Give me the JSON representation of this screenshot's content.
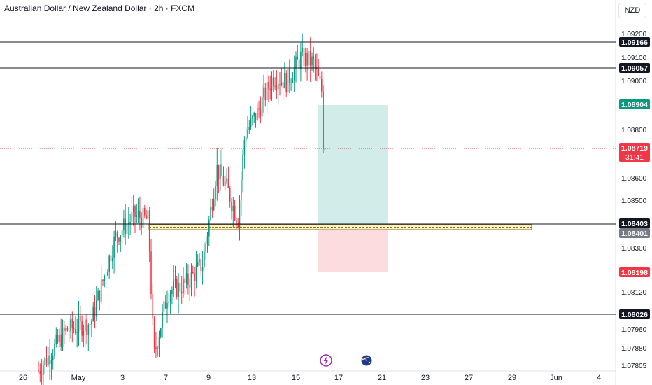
{
  "header": {
    "title": "Australian Dollar / New Zealand Dollar · 2h · FXCM",
    "currency": "NZD"
  },
  "colors": {
    "up": "#089981",
    "down": "#f23645",
    "line": "#131722",
    "target_zone": "#b2dfdb",
    "stop_zone": "#fbd0d3",
    "target_label": "#089981",
    "stop_label": "#f23645",
    "zone_fill": "#fff3c8",
    "zone_border": "#8d6e28"
  },
  "chart_data": {
    "type": "candlestick",
    "symbol": "AUDNZD",
    "timeframe": "2h",
    "y_ticks": [
      "1.09200",
      "1.09100",
      "1.09000",
      "1.08800",
      "1.08600",
      "1.08500",
      "1.08300",
      "1.08120",
      "1.07960",
      "1.07880",
      "1.07805"
    ],
    "x_ticks": [
      "26",
      "May",
      "3",
      "7",
      "9",
      "13",
      "15",
      "17",
      "21",
      "23",
      "27",
      "29",
      "Jun",
      "4"
    ],
    "horizontal_levels": [
      {
        "label": "1.09166"
      },
      {
        "label": "1.09057"
      },
      {
        "label": "1.08403"
      },
      {
        "label": "1.08026"
      }
    ],
    "price_labels": {
      "target": "1.08904",
      "current": "1.08719",
      "countdown": "31:41",
      "entry": "1.08401",
      "stop": "1.08198"
    },
    "position": {
      "type": "long",
      "entry": 1.08401,
      "target": 1.08904,
      "stop": 1.08198
    },
    "events": [
      "lightning-event-icon",
      "australia-flag-icon"
    ]
  }
}
